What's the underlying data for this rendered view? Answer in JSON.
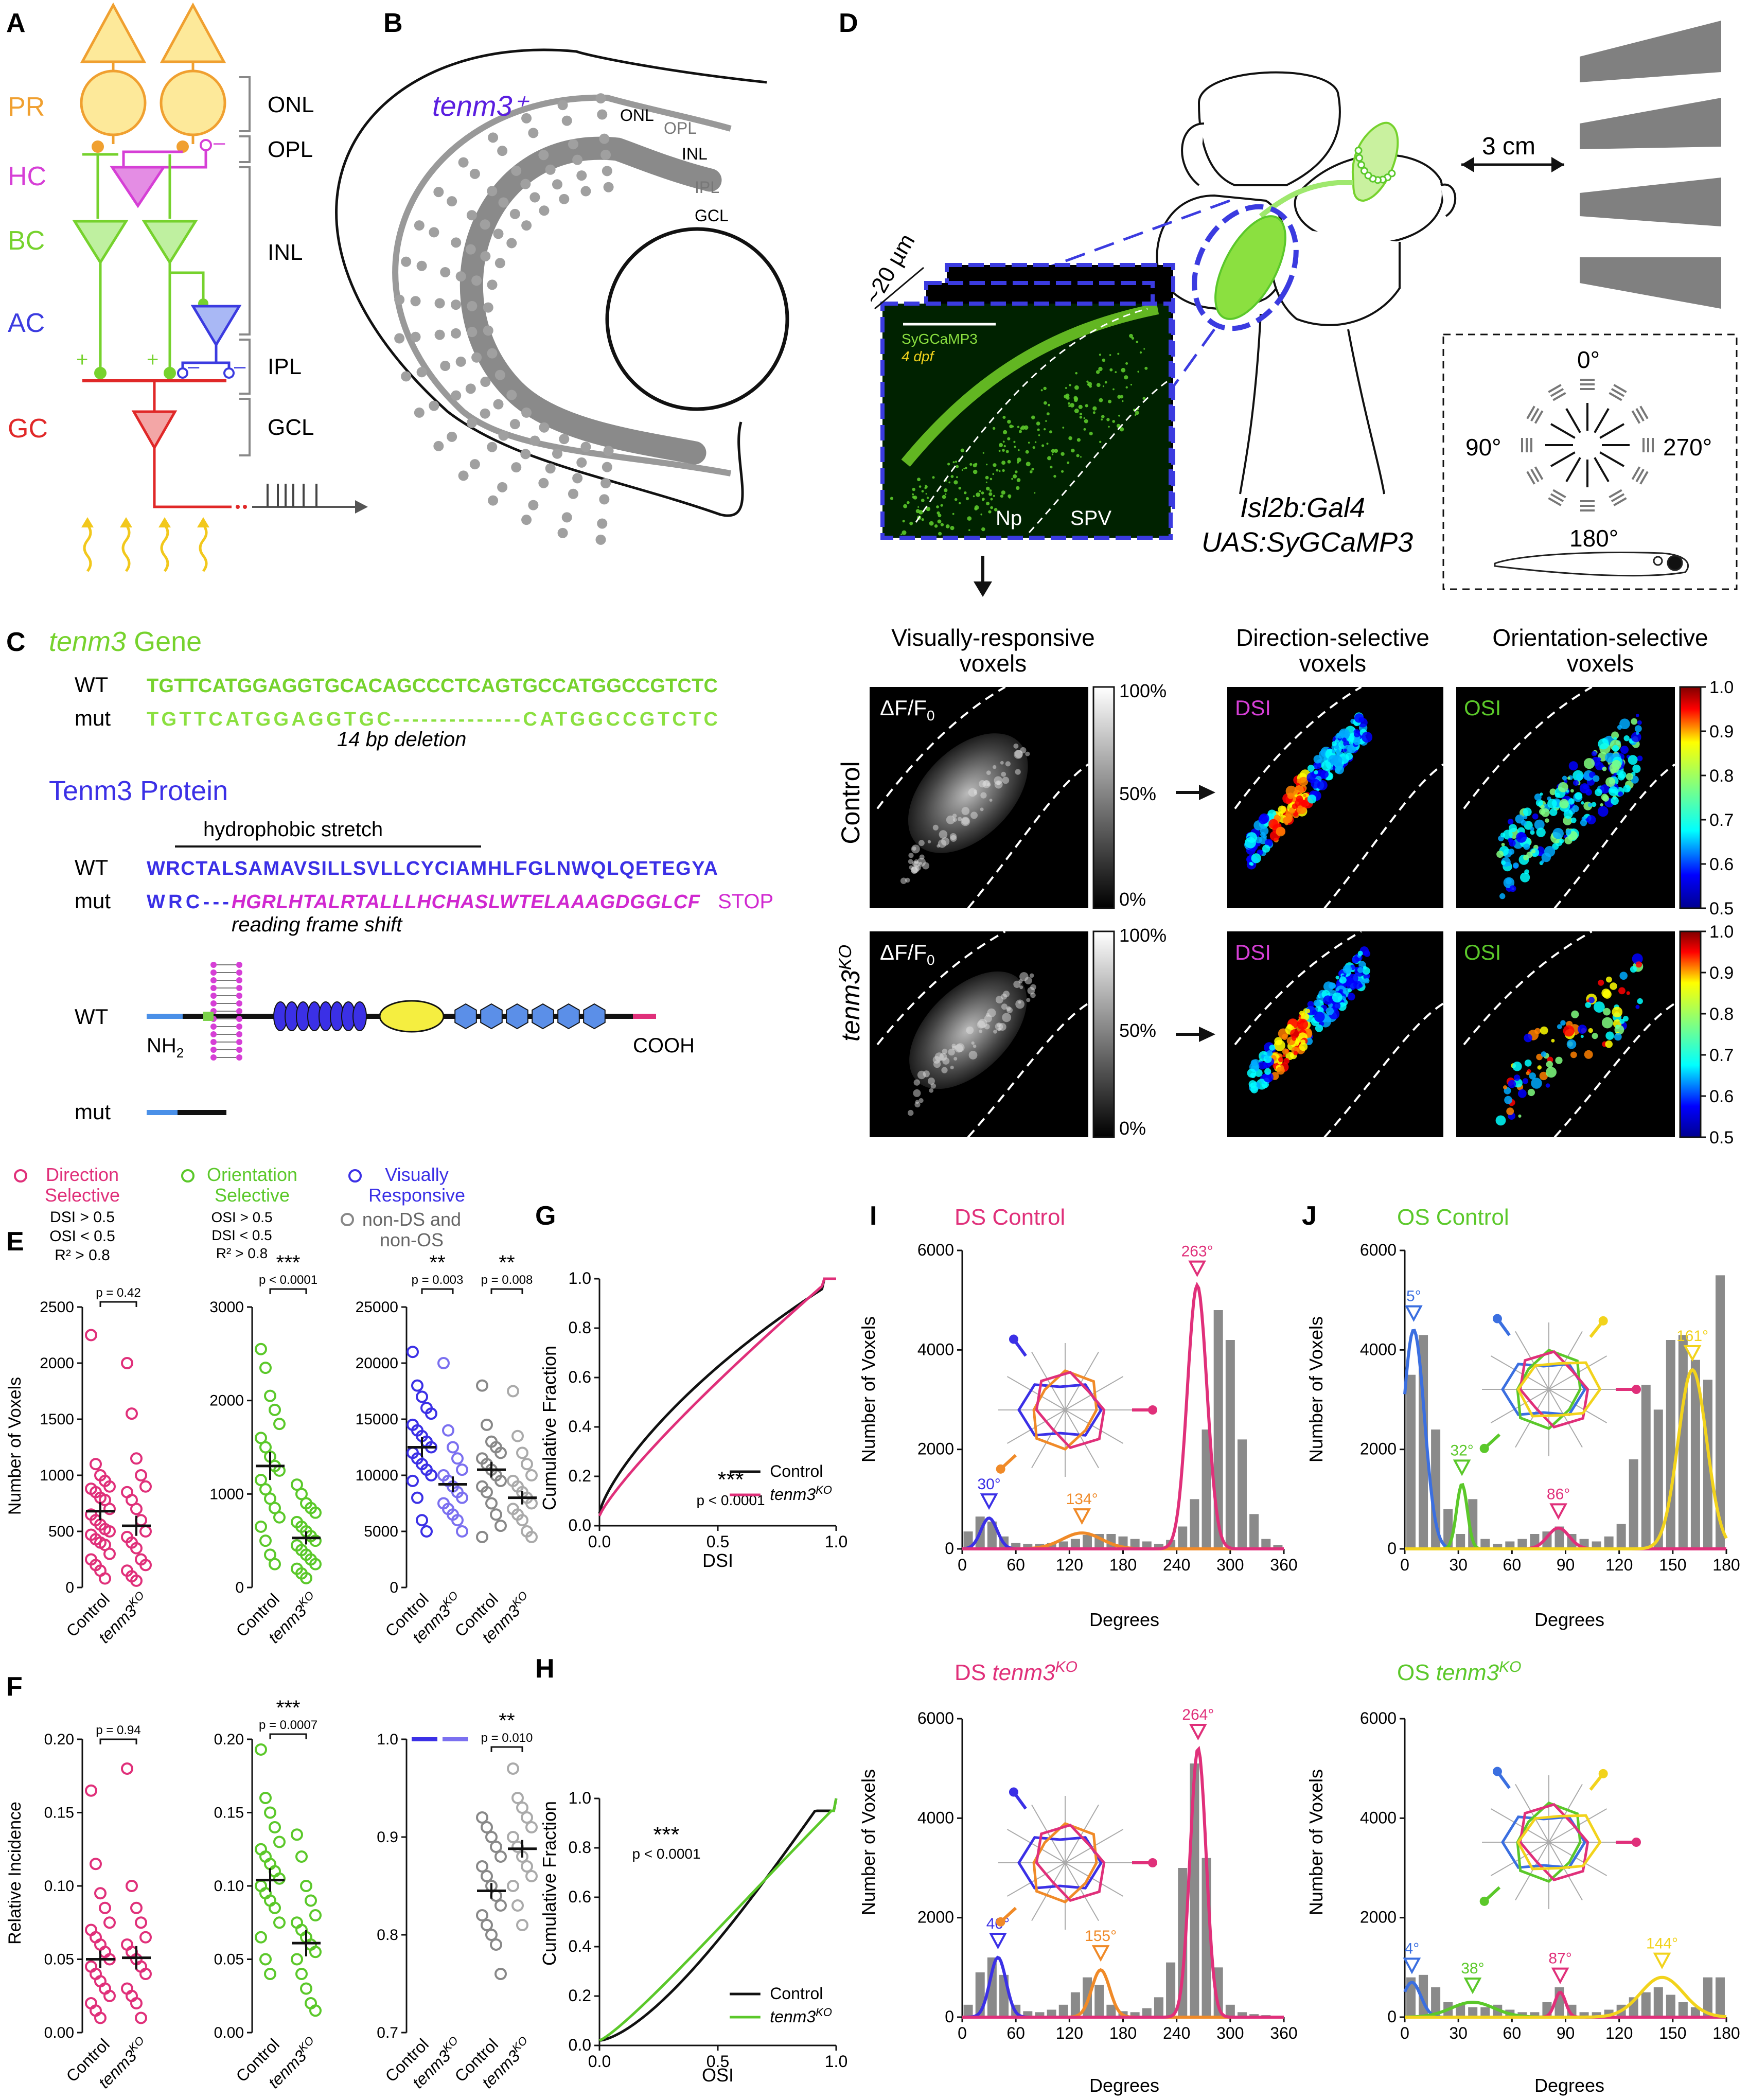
{
  "colors": {
    "pr": "#f0a030",
    "hc": "#d63fd6",
    "bc": "#76d22d",
    "ac": "#3b3be0",
    "gc": "#e02828",
    "ds": "#e0307a",
    "os": "#5bc82a",
    "vr": "#3b30e6",
    "gray": "#888888",
    "blue_line": "#3b6fe0",
    "orange": "#f08a28",
    "yellow": "#f2d31c",
    "stop": "#d028d0"
  },
  "panelA": {
    "letter": "A",
    "cells": [
      "PR",
      "HC",
      "BC",
      "AC",
      "GC"
    ],
    "layers": [
      "ONL",
      "OPL",
      "INL",
      "IPL",
      "GCL"
    ],
    "plus": "+",
    "minus": "–"
  },
  "panelB": {
    "letter": "B",
    "title": "tenm3⁺",
    "layers": [
      "ONL",
      "OPL",
      "INL",
      "IPL",
      "GCL"
    ]
  },
  "panelC": {
    "letter": "C",
    "gene_title": "tenm3",
    "gene_suffix": " Gene",
    "wt_label": "WT",
    "mut_label": "mut",
    "wt_seq": "TGTTCATGGAGGTGCACAGCCCTCAGTGCCATGGCCGTCTC",
    "mut_seq": "TGTTCATGGAGGTGC--------------CATGGCCGTCTC",
    "deletion": "14 bp deletion",
    "protein_title": "Tenm3 Protein",
    "hydrophobic": "hydrophobic stretch",
    "wt_prot": "WRCTALSAMAVSILLSVLLCYCIAMHLFGLNWQLQETEGYA",
    "mut_prot_a": "WRC---",
    "mut_prot_b": "HGRLHTALRTALLLHCHASLWTELAAAGDGGLCF",
    "stop": "STOP",
    "frameshift": "reading frame shift",
    "nh2": "NH",
    "nh2_sub": "2",
    "cooh": "COOH"
  },
  "panelD": {
    "letter": "D",
    "distance": "3 cm",
    "depth": "~20 µm",
    "sygcamp": "SyGCaMP3",
    "dpf": "4 dpf",
    "np": "Np",
    "spv": "SPV",
    "line1": "Isl2b:Gal4",
    "line2": "UAS:SyGCaMP3",
    "angles": [
      "0°",
      "90°",
      "270°",
      "180°"
    ],
    "col1": "Visually-responsive",
    "col1b": "voxels",
    "col2": "Direction-selective",
    "col2b": "voxels",
    "col3": "Orientation-selective",
    "col3b": "voxels",
    "row1": "Control",
    "row2": "tenm3",
    "row2_sup": "KO",
    "dff": "ΔF/F",
    "dff_sub": "0",
    "gray_ticks": [
      "100%",
      "50%",
      "0%"
    ],
    "dsi": "DSI",
    "osi": "OSI",
    "jet_ticks": [
      "1.0",
      "0.9",
      "0.8",
      "0.7",
      "0.6",
      "0.5"
    ]
  },
  "legendE": {
    "ds_title": "Direction",
    "ds_title2": "Selective",
    "ds_c1": "DSI > 0.5",
    "ds_c2": "OSI < 0.5",
    "ds_c3": "R² > 0.8",
    "os_title": "Orientation",
    "os_title2": "Selective",
    "os_c1": "OSI > 0.5",
    "os_c2": "DSI < 0.5",
    "os_c3": "R² > 0.8",
    "vr_title": "Visually",
    "vr_title2": "Responsive",
    "non1": "non-DS and",
    "non2": "non-OS"
  },
  "panelE": {
    "letter": "E",
    "ylabel": "Number of Voxels",
    "ds": {
      "p": "p = 0.42",
      "ticks": [
        "0",
        "500",
        "1000",
        "1500",
        "2000",
        "2500"
      ],
      "ymax": 2500,
      "ctrl_mean": 680,
      "ctrl_sem": 80,
      "ko_mean": 550,
      "ko_sem": 90,
      "ctrl_pts": [
        2250,
        1100,
        1000,
        950,
        900,
        880,
        850,
        800,
        780,
        700,
        650,
        600,
        560,
        520,
        500,
        470,
        430,
        400,
        380,
        300,
        250,
        200,
        150,
        80
      ],
      "ko_pts": [
        2000,
        1550,
        1150,
        1000,
        900,
        850,
        780,
        700,
        600,
        500,
        450,
        400,
        350,
        250,
        200,
        150,
        100,
        60
      ]
    },
    "os": {
      "stars": "***",
      "p": "p < 0.0001",
      "ticks": [
        "0",
        "1000",
        "2000",
        "3000"
      ],
      "ymax": 3000,
      "ctrl_mean": 1300,
      "ctrl_sem": 150,
      "ko_mean": 530,
      "ko_sem": 70,
      "ctrl_pts": [
        2550,
        2350,
        2050,
        1900,
        1750,
        1600,
        1500,
        1400,
        1300,
        1250,
        1150,
        1050,
        950,
        850,
        750,
        650,
        500,
        350,
        250
      ],
      "ko_pts": [
        1100,
        1000,
        900,
        850,
        800,
        700,
        650,
        600,
        550,
        500,
        450,
        400,
        350,
        300,
        250,
        200,
        150,
        100
      ]
    },
    "vr": {
      "stars1": "**",
      "p1": "p = 0.003",
      "stars2": "**",
      "p2": "p = 0.008",
      "ticks": [
        "0",
        "5000",
        "10000",
        "15000",
        "20000",
        "25000"
      ],
      "ymax": 25000,
      "ctrl_mean": 12500,
      "ctrl_sem": 900,
      "ko_mean": 9200,
      "ko_sem": 700,
      "nc_mean": 10500,
      "nc_sem": 700,
      "nk_mean": 8000,
      "nk_sem": 600,
      "ctrl_pts": [
        21000,
        18000,
        17000,
        16000,
        15500,
        14500,
        14000,
        13500,
        13000,
        12500,
        12000,
        11500,
        11000,
        10500,
        10000,
        9500,
        8000,
        6000,
        5000
      ],
      "ko_pts": [
        20000,
        14000,
        12500,
        11500,
        10500,
        10000,
        9500,
        9000,
        8500,
        8000,
        7500,
        7000,
        6500,
        6000,
        5000
      ],
      "nc_pts": [
        18000,
        14500,
        13000,
        12500,
        12000,
        11500,
        11000,
        10500,
        10000,
        9500,
        9000,
        8500,
        7500,
        6500,
        5500,
        4500
      ],
      "nk_pts": [
        17500,
        13500,
        12000,
        11000,
        10000,
        9500,
        9000,
        8500,
        8000,
        7500,
        7000,
        6500,
        6000,
        5000,
        4500
      ]
    },
    "xlabels": [
      "Control",
      "tenm3"
    ],
    "ko_sup": "KO"
  },
  "panelF": {
    "letter": "F",
    "ylabel": "Relative Incidence",
    "ds": {
      "p": "p = 0.94",
      "ticks": [
        "0.00",
        "0.05",
        "0.10",
        "0.15",
        "0.20"
      ],
      "ymax": 0.2,
      "ctrl_mean": 0.05,
      "ctrl_sem": 0.006,
      "ko_mean": 0.051,
      "ko_sem": 0.008,
      "ctrl_pts": [
        0.165,
        0.115,
        0.095,
        0.085,
        0.075,
        0.07,
        0.065,
        0.06,
        0.055,
        0.05,
        0.045,
        0.04,
        0.035,
        0.03,
        0.025,
        0.02,
        0.015,
        0.01
      ],
      "ko_pts": [
        0.18,
        0.1,
        0.085,
        0.075,
        0.065,
        0.06,
        0.055,
        0.05,
        0.045,
        0.04,
        0.03,
        0.025,
        0.02,
        0.01
      ]
    },
    "os": {
      "stars": "***",
      "p": "p = 0.0007",
      "ticks": [
        "0.00",
        "0.05",
        "0.10",
        "0.15",
        "0.20"
      ],
      "ymax": 0.2,
      "ctrl_mean": 0.104,
      "ctrl_sem": 0.008,
      "ko_mean": 0.061,
      "ko_sem": 0.009,
      "ctrl_pts": [
        0.193,
        0.16,
        0.15,
        0.14,
        0.13,
        0.125,
        0.12,
        0.115,
        0.11,
        0.105,
        0.1,
        0.095,
        0.09,
        0.085,
        0.075,
        0.065,
        0.05,
        0.04
      ],
      "ko_pts": [
        0.135,
        0.12,
        0.1,
        0.09,
        0.08,
        0.075,
        0.07,
        0.065,
        0.06,
        0.055,
        0.05,
        0.04,
        0.03,
        0.02,
        0.015
      ]
    },
    "vr": {
      "stars": "**",
      "p": "p = 0.010",
      "ticks": [
        "0.7",
        "0.8",
        "0.9",
        "1.0"
      ],
      "ymin": 0.7,
      "ymax": 1.0,
      "nc_mean": 0.845,
      "nc_sem": 0.008,
      "nk_mean": 0.888,
      "nk_sem": 0.009,
      "nc_pts": [
        0.92,
        0.91,
        0.9,
        0.89,
        0.88,
        0.87,
        0.86,
        0.85,
        0.84,
        0.83,
        0.82,
        0.81,
        0.8,
        0.79,
        0.76
      ],
      "nk_pts": [
        0.97,
        0.94,
        0.93,
        0.92,
        0.91,
        0.9,
        0.89,
        0.88,
        0.87,
        0.86,
        0.85,
        0.83,
        0.81
      ]
    },
    "xlabels4": [
      "Control",
      "tenm3",
      "Control",
      "tenm3"
    ]
  },
  "panelG": {
    "letter": "G",
    "xlabel": "DSI",
    "ylabel": "Cumulative Fraction",
    "stars": "***",
    "p": "p < 0.0001",
    "ticks_x": [
      "0.0",
      "0.5",
      "1.0"
    ],
    "ticks_y": [
      "0.0",
      "0.2",
      "0.4",
      "0.6",
      "0.8",
      "1.0"
    ],
    "legend": [
      "Control",
      "tenm3"
    ]
  },
  "panelH": {
    "letter": "H",
    "xlabel": "OSI",
    "ylabel": "Cumulative Fraction",
    "stars": "***",
    "p": "p < 0.0001",
    "ticks_x": [
      "0.0",
      "0.5",
      "1.0"
    ],
    "ticks_y": [
      "0.0",
      "0.2",
      "0.4",
      "0.6",
      "0.8",
      "1.0"
    ],
    "legend": [
      "Control",
      "tenm3"
    ]
  },
  "panelI": {
    "letter": "I",
    "title1": "DS Control",
    "title2a": "DS ",
    "title2b": "tenm3",
    "ylabel": "Number of Voxels",
    "xlabel": "Degrees",
    "ticks_x": [
      "0",
      "60",
      "120",
      "180",
      "240",
      "300",
      "360"
    ],
    "ticks_y": [
      "0",
      "2000",
      "4000",
      "6000"
    ],
    "ctrl": {
      "bars": [
        350,
        650,
        550,
        250,
        120,
        100,
        100,
        120,
        150,
        200,
        280,
        300,
        300,
        250,
        200,
        150,
        100,
        180,
        450,
        1000,
        2400,
        4800,
        4200,
        2200,
        700,
        200,
        80
      ],
      "peaks": [
        {
          "label": "30°",
          "mu": 30,
          "amp": 620,
          "sd": 9,
          "color": "#3b30e6"
        },
        {
          "label": "134°",
          "mu": 134,
          "amp": 320,
          "sd": 22,
          "color": "#f08a28"
        },
        {
          "label": "263°",
          "mu": 263,
          "amp": 5300,
          "sd": 11,
          "color": "#e0307a"
        }
      ]
    },
    "ko": {
      "bars": [
        250,
        900,
        1200,
        850,
        250,
        120,
        100,
        150,
        250,
        500,
        800,
        650,
        250,
        120,
        100,
        180,
        400,
        1100,
        3000,
        5100,
        3200,
        1000,
        250,
        100,
        60,
        40,
        30
      ],
      "peaks": [
        {
          "label": "40°",
          "mu": 40,
          "amp": 1200,
          "sd": 9,
          "color": "#3b30e6"
        },
        {
          "label": "155°",
          "mu": 155,
          "amp": 950,
          "sd": 10,
          "color": "#f08a28"
        },
        {
          "label": "264°",
          "mu": 264,
          "amp": 5400,
          "sd": 9,
          "color": "#e0307a"
        }
      ]
    }
  },
  "panelJ": {
    "letter": "J",
    "title1": "OS Control",
    "title2a": "OS ",
    "title2b": "tenm3",
    "ylabel": "Number of Voxels",
    "xlabel": "Degrees",
    "ticks_x": [
      "0",
      "30",
      "60",
      "90",
      "120",
      "150",
      "180"
    ],
    "ticks_y": [
      "0",
      "2000",
      "4000",
      "6000"
    ],
    "ctrl": {
      "bars": [
        3500,
        4300,
        2400,
        800,
        300,
        1000,
        200,
        100,
        150,
        200,
        300,
        350,
        450,
        300,
        200,
        150,
        250,
        500,
        1800,
        3300,
        2800,
        4200,
        4300,
        3800,
        3400,
        5500
      ],
      "peaks": [
        {
          "label": "5°",
          "mu": 5,
          "amp": 4400,
          "sd": 6,
          "color": "#3b6fe0"
        },
        {
          "label": "32°",
          "mu": 32,
          "amp": 1300,
          "sd": 3,
          "color": "#5bc82a"
        },
        {
          "label": "86°",
          "mu": 86,
          "amp": 420,
          "sd": 6,
          "color": "#e0307a"
        },
        {
          "label": "161°",
          "mu": 161,
          "amp": 3600,
          "sd": 8,
          "color": "#f2d31c"
        }
      ]
    },
    "ko": {
      "bars": [
        800,
        850,
        600,
        300,
        250,
        200,
        200,
        250,
        150,
        100,
        100,
        300,
        600,
        250,
        100,
        100,
        150,
        250,
        400,
        500,
        600,
        450,
        300,
        200,
        800,
        800
      ],
      "peaks": [
        {
          "label": "4°",
          "mu": 4,
          "amp": 700,
          "sd": 5,
          "color": "#3b6fe0"
        },
        {
          "label": "38°",
          "mu": 38,
          "amp": 300,
          "sd": 12,
          "color": "#5bc82a"
        },
        {
          "label": "87°",
          "mu": 87,
          "amp": 500,
          "sd": 3,
          "color": "#e0307a"
        },
        {
          "label": "144°",
          "mu": 144,
          "amp": 800,
          "sd": 12,
          "color": "#f2d31c"
        }
      ]
    }
  },
  "chart_data": [
    {
      "type": "scatter",
      "title": "Number of Voxels (E)",
      "categories": [
        "Direction Selective",
        "Orientation Selective",
        "Visually Responsive",
        "non-DS and non-OS"
      ],
      "series": [
        {
          "name": "Control",
          "values": [
            680,
            1300,
            12500,
            10500
          ]
        },
        {
          "name": "tenm3KO",
          "values": [
            550,
            530,
            9200,
            8000
          ]
        }
      ]
    },
    {
      "type": "scatter",
      "title": "Relative Incidence (F)",
      "categories": [
        "Direction Selective",
        "Orientation Selective",
        "non-DS and non-OS"
      ],
      "series": [
        {
          "name": "Control",
          "values": [
            0.05,
            0.104,
            0.845
          ]
        },
        {
          "name": "tenm3KO",
          "values": [
            0.051,
            0.061,
            0.888
          ]
        }
      ]
    },
    {
      "type": "line",
      "title": "G",
      "xlabel": "DSI",
      "ylabel": "Cumulative Fraction",
      "series": [
        {
          "name": "Control"
        },
        {
          "name": "tenm3KO"
        }
      ]
    },
    {
      "type": "line",
      "title": "H",
      "xlabel": "OSI",
      "ylabel": "Cumulative Fraction",
      "series": [
        {
          "name": "Control"
        },
        {
          "name": "tenm3KO"
        }
      ]
    },
    {
      "type": "bar",
      "title": "DS Control / DS tenm3KO (I)",
      "xlabel": "Degrees",
      "ylabel": "Number of Voxels",
      "peaks_ctrl": [
        30,
        134,
        263
      ],
      "peaks_ko": [
        40,
        155,
        264
      ]
    },
    {
      "type": "bar",
      "title": "OS Control / OS tenm3KO (J)",
      "xlabel": "Degrees",
      "ylabel": "Number of Voxels",
      "peaks_ctrl": [
        5,
        32,
        86,
        161
      ],
      "peaks_ko": [
        4,
        38,
        87,
        144
      ]
    }
  ]
}
